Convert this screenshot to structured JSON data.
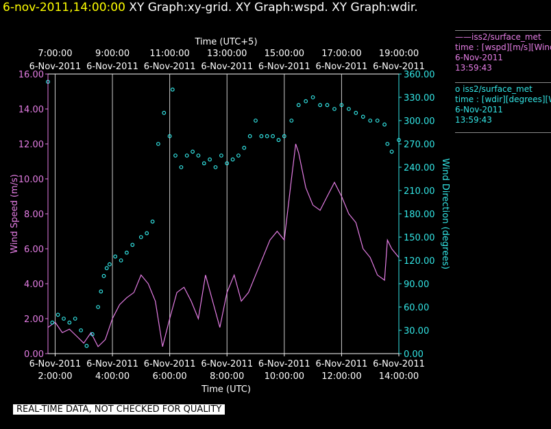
{
  "header": {
    "timestamp": "6-nov-2011,14:00:00",
    "graphs": "XY Graph:xy-grid.  XY Graph:wspd.  XY Graph:wdir."
  },
  "legend": {
    "wspd": {
      "name": "iss2/surface_met",
      "desc": "time : [wspd][m/s][Wind",
      "date": "6-Nov-2011",
      "time": "13:59:43"
    },
    "wdir": {
      "name": "iss2/surface_met",
      "desc": "time : [wdir][degrees][W",
      "date": "6-Nov-2011",
      "time": "13:59:43"
    }
  },
  "footer": {
    "text": "REAL-TIME DATA, NOT CHECKED FOR QUALITY"
  },
  "colors": {
    "wspd": "#e67ee6",
    "wdir": "#33e6e6",
    "background": "#000000",
    "grid": "#cfcfcf"
  },
  "chart_data": {
    "type": "line",
    "x_top_label": "Time (UTC+5)",
    "x_bottom_label": "Time (UTC)",
    "y_left_label": "Wind  Speed  (m/s)",
    "y_right_label": "Wind  Direction  (degrees)",
    "x_range_hours_utc": [
      1.75,
      14.0
    ],
    "y_left_range": [
      0,
      16
    ],
    "y_right_range": [
      0,
      360
    ],
    "top_ticks": [
      {
        "date": "6-Nov-2011",
        "time": "7:00:00",
        "utc_hour": 2
      },
      {
        "date": "6-Nov-2011",
        "time": "9:00:00",
        "utc_hour": 4
      },
      {
        "date": "6-Nov-2011",
        "time": "11:00:00",
        "utc_hour": 6
      },
      {
        "date": "6-Nov-2011",
        "time": "13:00:00",
        "utc_hour": 8
      },
      {
        "date": "6-Nov-2011",
        "time": "15:00:00",
        "utc_hour": 10
      },
      {
        "date": "6-Nov-2011",
        "time": "17:00:00",
        "utc_hour": 12
      },
      {
        "date": "6-Nov-2011",
        "time": "19:00:00",
        "utc_hour": 14
      }
    ],
    "bottom_ticks": [
      {
        "date": "6-Nov-2011",
        "time": "2:00:00",
        "utc_hour": 2
      },
      {
        "date": "6-Nov-2011",
        "time": "4:00:00",
        "utc_hour": 4
      },
      {
        "date": "6-Nov-2011",
        "time": "6:00:00",
        "utc_hour": 6
      },
      {
        "date": "6-Nov-2011",
        "time": "8:00:00",
        "utc_hour": 8
      },
      {
        "date": "6-Nov-2011",
        "time": "10:00:00",
        "utc_hour": 10
      },
      {
        "date": "6-Nov-2011",
        "time": "12:00:00",
        "utc_hour": 12
      },
      {
        "date": "6-Nov-2011",
        "time": "14:00:00",
        "utc_hour": 14
      }
    ],
    "left_ticks": [
      "0.00",
      "2.00",
      "4.00",
      "6.00",
      "8.00",
      "10.00",
      "12.00",
      "14.00",
      "16.00"
    ],
    "right_ticks": [
      "0.00",
      "30.00",
      "60.00",
      "90.00",
      "120.00",
      "150.00",
      "180.00",
      "210.00",
      "240.00",
      "270.00",
      "300.00",
      "330.00",
      "360.00"
    ],
    "series": [
      {
        "name": "iss2/surface_met",
        "variable": "wspd",
        "axis": "left",
        "style": "line",
        "x": [
          1.75,
          2.0,
          2.25,
          2.5,
          2.75,
          3.0,
          3.25,
          3.5,
          3.75,
          4.0,
          4.25,
          4.5,
          4.75,
          5.0,
          5.25,
          5.5,
          5.75,
          6.0,
          6.25,
          6.5,
          6.75,
          7.0,
          7.25,
          7.5,
          7.75,
          8.0,
          8.25,
          8.5,
          8.75,
          9.0,
          9.25,
          9.5,
          9.75,
          10.0,
          10.25,
          10.4,
          10.5,
          10.75,
          11.0,
          11.25,
          11.5,
          11.75,
          12.0,
          12.25,
          12.5,
          12.75,
          13.0,
          13.25,
          13.5,
          13.6,
          13.75,
          14.0
        ],
        "values": [
          1.5,
          1.8,
          1.2,
          1.4,
          1.0,
          0.6,
          1.2,
          0.4,
          0.8,
          2.0,
          2.8,
          3.2,
          3.5,
          4.5,
          4.0,
          3.0,
          0.4,
          2.0,
          3.5,
          3.8,
          3.0,
          2.0,
          4.5,
          3.0,
          1.5,
          3.5,
          4.5,
          3.0,
          3.5,
          4.5,
          5.5,
          6.5,
          7.0,
          6.5,
          10.0,
          12.0,
          11.5,
          9.5,
          8.5,
          8.2,
          9.0,
          9.8,
          9.0,
          8.0,
          7.5,
          6.0,
          5.5,
          4.5,
          4.2,
          6.5,
          6.0,
          5.5
        ]
      },
      {
        "name": "iss2/surface_met",
        "variable": "wdir",
        "axis": "right",
        "style": "points",
        "x": [
          1.75,
          1.9,
          2.1,
          2.3,
          2.5,
          2.7,
          2.9,
          3.1,
          3.3,
          3.5,
          3.6,
          3.7,
          3.8,
          3.9,
          4.1,
          4.3,
          4.5,
          4.7,
          5.0,
          5.2,
          5.4,
          5.6,
          5.8,
          6.0,
          6.1,
          6.2,
          6.4,
          6.6,
          6.8,
          7.0,
          7.2,
          7.4,
          7.6,
          7.8,
          8.0,
          8.2,
          8.4,
          8.6,
          8.8,
          9.0,
          9.2,
          9.4,
          9.6,
          9.8,
          10.0,
          10.25,
          10.5,
          10.75,
          11.0,
          11.25,
          11.5,
          11.75,
          12.0,
          12.25,
          12.5,
          12.75,
          13.0,
          13.25,
          13.5,
          13.6,
          13.75,
          14.0
        ],
        "values": [
          350,
          40,
          50,
          45,
          40,
          45,
          30,
          10,
          25,
          60,
          80,
          100,
          110,
          115,
          125,
          120,
          130,
          140,
          150,
          155,
          170,
          270,
          310,
          280,
          340,
          255,
          240,
          255,
          260,
          255,
          245,
          250,
          240,
          255,
          245,
          250,
          255,
          265,
          280,
          300,
          280,
          280,
          280,
          275,
          280,
          300,
          320,
          325,
          330,
          320,
          320,
          315,
          320,
          315,
          310,
          305,
          300,
          300,
          295,
          270,
          260,
          275
        ]
      }
    ]
  }
}
